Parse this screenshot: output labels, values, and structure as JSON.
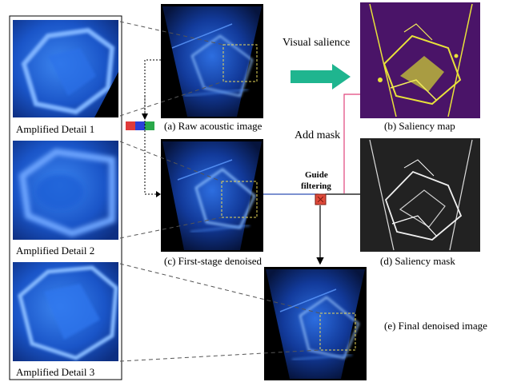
{
  "labels": {
    "detail_1": "Amplified Detail 1",
    "detail_2": "Amplified Detail 2",
    "detail_3": "Amplified Detail 3",
    "raw": "(a) Raw acoustic image",
    "saliency_map": "(b) Saliency map",
    "first_stage": "(c) First-stage denoised",
    "saliency_mask": "(d) Saliency mask",
    "final": "(e) Final denoised image",
    "visual_salience": "Visual salience",
    "add_mask": "Add mask",
    "guide_line1": "Guide",
    "guide_line2": "filtering"
  },
  "colors": {
    "sonar_bg": "#050a1a",
    "sonar_blue": "#1f5fd6",
    "sonar_light": "#6aa8ff",
    "saliency_bg": "#4a1468",
    "saliency_yellow": "#e8e23a",
    "mask_bg": "#222222",
    "arrow_teal": "#1fb58f",
    "pink_line": "#e0447c",
    "blue_line": "#2e4fb5",
    "guide_red": "#e04a3a",
    "dash_yellow": "#e8d85a"
  }
}
